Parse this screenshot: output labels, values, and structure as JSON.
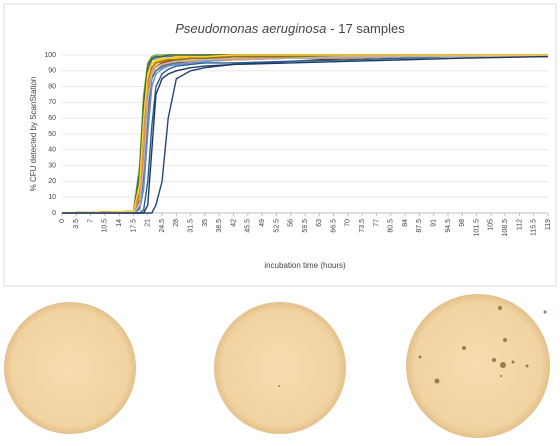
{
  "chart_data": {
    "type": "line",
    "title": [
      "Pseudomonas aeruginosa",
      "- 17 samples"
    ],
    "x_label": "incubation time (hours)",
    "y_label": "% CFU detected by ScanStation",
    "x": [
      0,
      17.5,
      19,
      20,
      21,
      22,
      23,
      24.5,
      26,
      28,
      31.5,
      35,
      42,
      56,
      70,
      84,
      98,
      119
    ],
    "xlim": [
      0,
      119
    ],
    "xticks": [
      0,
      3.5,
      7,
      10.5,
      14,
      17.5,
      21,
      24.5,
      28,
      31.5,
      35,
      38.5,
      42,
      45.5,
      49,
      52.5,
      56,
      59.5,
      63,
      66.5,
      70,
      73.5,
      77,
      80.5,
      84,
      87.5,
      91,
      94.5,
      98,
      101.5,
      105,
      108.5,
      112,
      115.5,
      119
    ],
    "ylim": [
      0,
      100
    ],
    "yticks": [
      0,
      10,
      20,
      30,
      40,
      50,
      60,
      70,
      80,
      90,
      100
    ],
    "grid": true,
    "series": [
      {
        "color": "#4472c4",
        "values": [
          0,
          1,
          20,
          60,
          90,
          97,
          98,
          99,
          99,
          99,
          99,
          100,
          100,
          100,
          100,
          100,
          100,
          100
        ]
      },
      {
        "color": "#ed7d31",
        "values": [
          0,
          1,
          10,
          45,
          80,
          92,
          95,
          96,
          97,
          97,
          98,
          98,
          98,
          99,
          99,
          99,
          100,
          100
        ]
      },
      {
        "color": "#a5a5a5",
        "values": [
          0,
          0,
          5,
          30,
          70,
          88,
          92,
          94,
          95,
          96,
          97,
          97,
          98,
          98,
          99,
          99,
          99,
          99
        ]
      },
      {
        "color": "#ffc000",
        "values": [
          0,
          1,
          15,
          55,
          85,
          94,
          96,
          97,
          98,
          98,
          99,
          99,
          99,
          100,
          100,
          100,
          100,
          100
        ]
      },
      {
        "color": "#5b9bd5",
        "values": [
          0,
          0,
          3,
          20,
          60,
          85,
          90,
          92,
          93,
          94,
          95,
          96,
          97,
          98,
          98,
          99,
          99,
          100
        ]
      },
      {
        "color": "#70ad47",
        "values": [
          0,
          1,
          30,
          75,
          95,
          99,
          100,
          100,
          100,
          100,
          100,
          100,
          100,
          100,
          100,
          100,
          100,
          100
        ]
      },
      {
        "color": "#264478",
        "values": [
          0,
          0,
          0,
          0,
          0,
          0,
          5,
          20,
          60,
          85,
          90,
          92,
          94,
          96,
          98,
          99,
          100,
          100
        ]
      },
      {
        "color": "#9e480e",
        "values": [
          0,
          1,
          8,
          40,
          78,
          90,
          93,
          95,
          96,
          97,
          97,
          98,
          98,
          99,
          99,
          99,
          99,
          99
        ]
      },
      {
        "color": "#636363",
        "values": [
          0,
          0,
          4,
          25,
          65,
          86,
          90,
          93,
          94,
          95,
          96,
          97,
          97,
          98,
          98,
          99,
          99,
          99
        ]
      },
      {
        "color": "#997300",
        "values": [
          0,
          1,
          12,
          50,
          82,
          92,
          95,
          96,
          97,
          97,
          98,
          98,
          99,
          99,
          99,
          100,
          100,
          100
        ]
      },
      {
        "color": "#255e91",
        "values": [
          0,
          0,
          0,
          2,
          20,
          55,
          80,
          88,
          91,
          93,
          94,
          95,
          95,
          96,
          97,
          98,
          99,
          100
        ]
      },
      {
        "color": "#43682b",
        "values": [
          0,
          1,
          25,
          70,
          93,
          98,
          99,
          99,
          100,
          100,
          100,
          100,
          100,
          100,
          100,
          100,
          100,
          100
        ]
      },
      {
        "color": "#698ed0",
        "values": [
          0,
          0,
          2,
          15,
          50,
          80,
          88,
          91,
          93,
          94,
          95,
          96,
          97,
          98,
          99,
          99,
          100,
          100
        ]
      },
      {
        "color": "#f1975a",
        "values": [
          0,
          1,
          10,
          45,
          80,
          90,
          93,
          94,
          95,
          96,
          96,
          97,
          97,
          98,
          98,
          99,
          99,
          99
        ]
      },
      {
        "color": "#b7b7b7",
        "values": [
          0,
          0,
          5,
          30,
          70,
          88,
          92,
          94,
          95,
          96,
          97,
          97,
          98,
          98,
          99,
          99,
          99,
          100
        ]
      },
      {
        "color": "#ffcd33",
        "values": [
          0,
          1,
          18,
          60,
          88,
          95,
          97,
          98,
          98,
          99,
          99,
          99,
          100,
          100,
          100,
          100,
          100,
          100
        ]
      },
      {
        "color": "#1f3864",
        "values": [
          0,
          0,
          0,
          0,
          5,
          40,
          75,
          85,
          88,
          90,
          92,
          93,
          94,
          95,
          96,
          97,
          98,
          99
        ]
      }
    ]
  }
}
